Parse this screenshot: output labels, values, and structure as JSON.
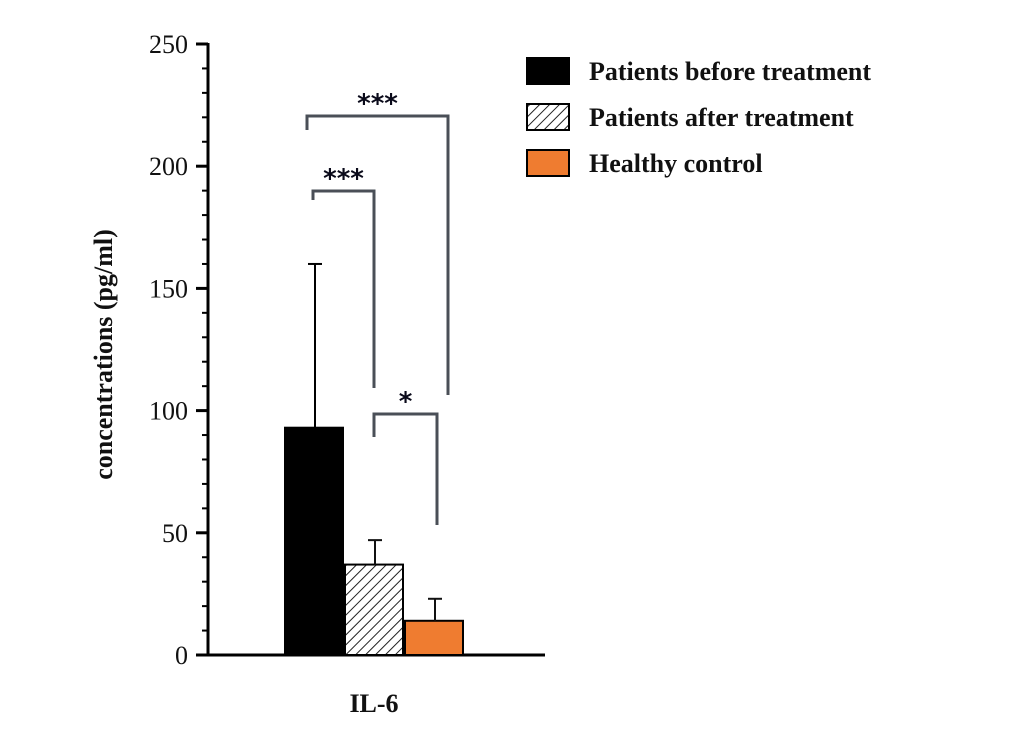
{
  "chart_data": {
    "type": "bar",
    "ylabel": "concentrations (pg/ml)",
    "xlabel": "",
    "ylim": [
      0,
      250
    ],
    "yticks": [
      "0",
      "50",
      "100",
      "150",
      "200",
      "250"
    ],
    "categories": [
      "IL-6"
    ],
    "series": [
      {
        "name": "Patients before  treatment",
        "values": [
          93
        ],
        "error": [
          67
        ],
        "color": "#000000",
        "pattern": "solid"
      },
      {
        "name": "Patients after treatment",
        "values": [
          37
        ],
        "error": [
          10
        ],
        "color": "#ffffff",
        "pattern": "hatch"
      },
      {
        "name": "Healthy control",
        "values": [
          14
        ],
        "error": [
          9
        ],
        "color": "#ef7c30",
        "pattern": "solid"
      }
    ],
    "significance": [
      {
        "from": 0,
        "to": 1,
        "label": "***"
      },
      {
        "from": 1,
        "to": 2,
        "label": "*"
      },
      {
        "from": 0,
        "to": 2,
        "label": "***"
      }
    ],
    "legend_position": "top-right"
  }
}
